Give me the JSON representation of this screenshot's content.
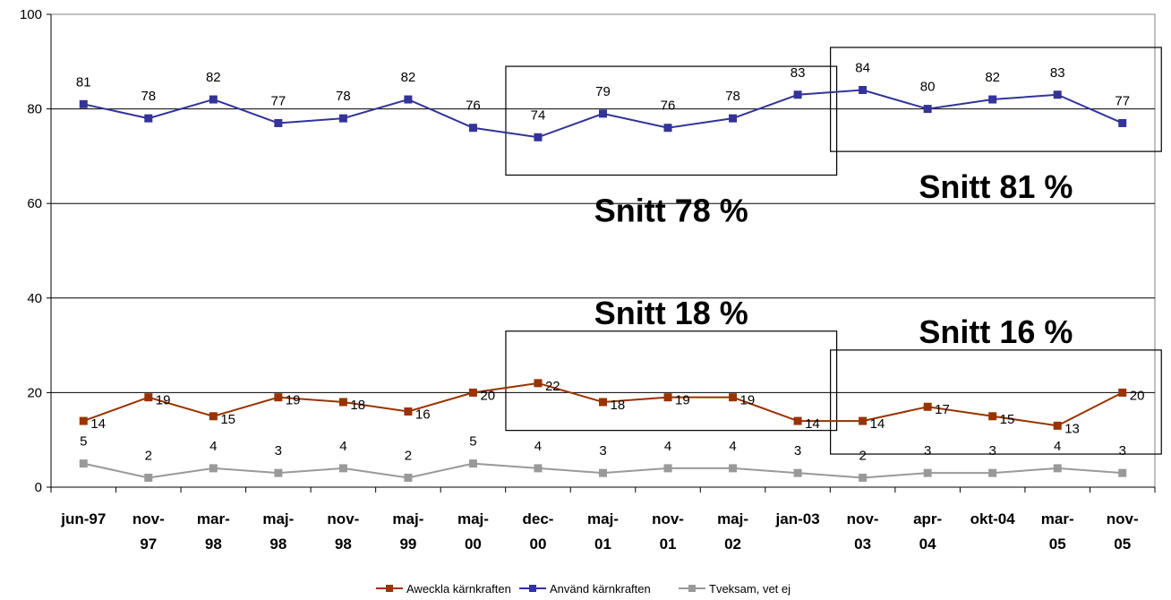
{
  "chart_data": {
    "type": "line",
    "categories": [
      [
        "jun-97"
      ],
      [
        "nov-",
        "97"
      ],
      [
        "mar-",
        "98"
      ],
      [
        "maj-",
        "98"
      ],
      [
        "nov-",
        "98"
      ],
      [
        "maj-",
        "99"
      ],
      [
        "maj-",
        "00"
      ],
      [
        "dec-",
        "00"
      ],
      [
        "maj-",
        "01"
      ],
      [
        "nov-",
        "01"
      ],
      [
        "maj-",
        "02"
      ],
      [
        "jan-03"
      ],
      [
        "nov-",
        "03"
      ],
      [
        "apr-",
        "04"
      ],
      [
        "okt-04"
      ],
      [
        "mar-",
        "05"
      ],
      [
        "nov-",
        "05"
      ]
    ],
    "ylim": [
      0,
      100
    ],
    "yticks": [
      "0",
      "20",
      "40",
      "60",
      "80",
      "100"
    ],
    "grid": true,
    "legend_position": "bottom",
    "series": [
      {
        "name": "Aweckla kärnkraften",
        "color": "#993300",
        "values": [
          14,
          19,
          15,
          19,
          18,
          16,
          20,
          22,
          18,
          19,
          19,
          14,
          14,
          17,
          15,
          13,
          20
        ]
      },
      {
        "name": "Använd kärnkraften",
        "color": "#333399",
        "values": [
          81,
          78,
          82,
          77,
          78,
          82,
          76,
          74,
          79,
          76,
          78,
          83,
          84,
          80,
          82,
          83,
          77
        ]
      },
      {
        "name": "Tveksam, vet ej",
        "color": "#999999",
        "values": [
          5,
          2,
          4,
          3,
          4,
          2,
          5,
          4,
          3,
          4,
          4,
          3,
          2,
          3,
          3,
          4,
          3
        ]
      }
    ],
    "annotations": [
      {
        "text": "Snitt 78 %",
        "box_range": [
          7,
          11
        ],
        "box_y": [
          66,
          89
        ]
      },
      {
        "text": "Snitt 81 %",
        "box_range": [
          12,
          16
        ],
        "box_y": [
          71,
          93
        ]
      },
      {
        "text": "Snitt 18 %",
        "box_range": [
          7,
          11
        ],
        "box_y": [
          12,
          33
        ]
      },
      {
        "text": "Snitt 16 %",
        "box_range": [
          12,
          16
        ],
        "box_y": [
          7,
          29
        ]
      }
    ]
  }
}
